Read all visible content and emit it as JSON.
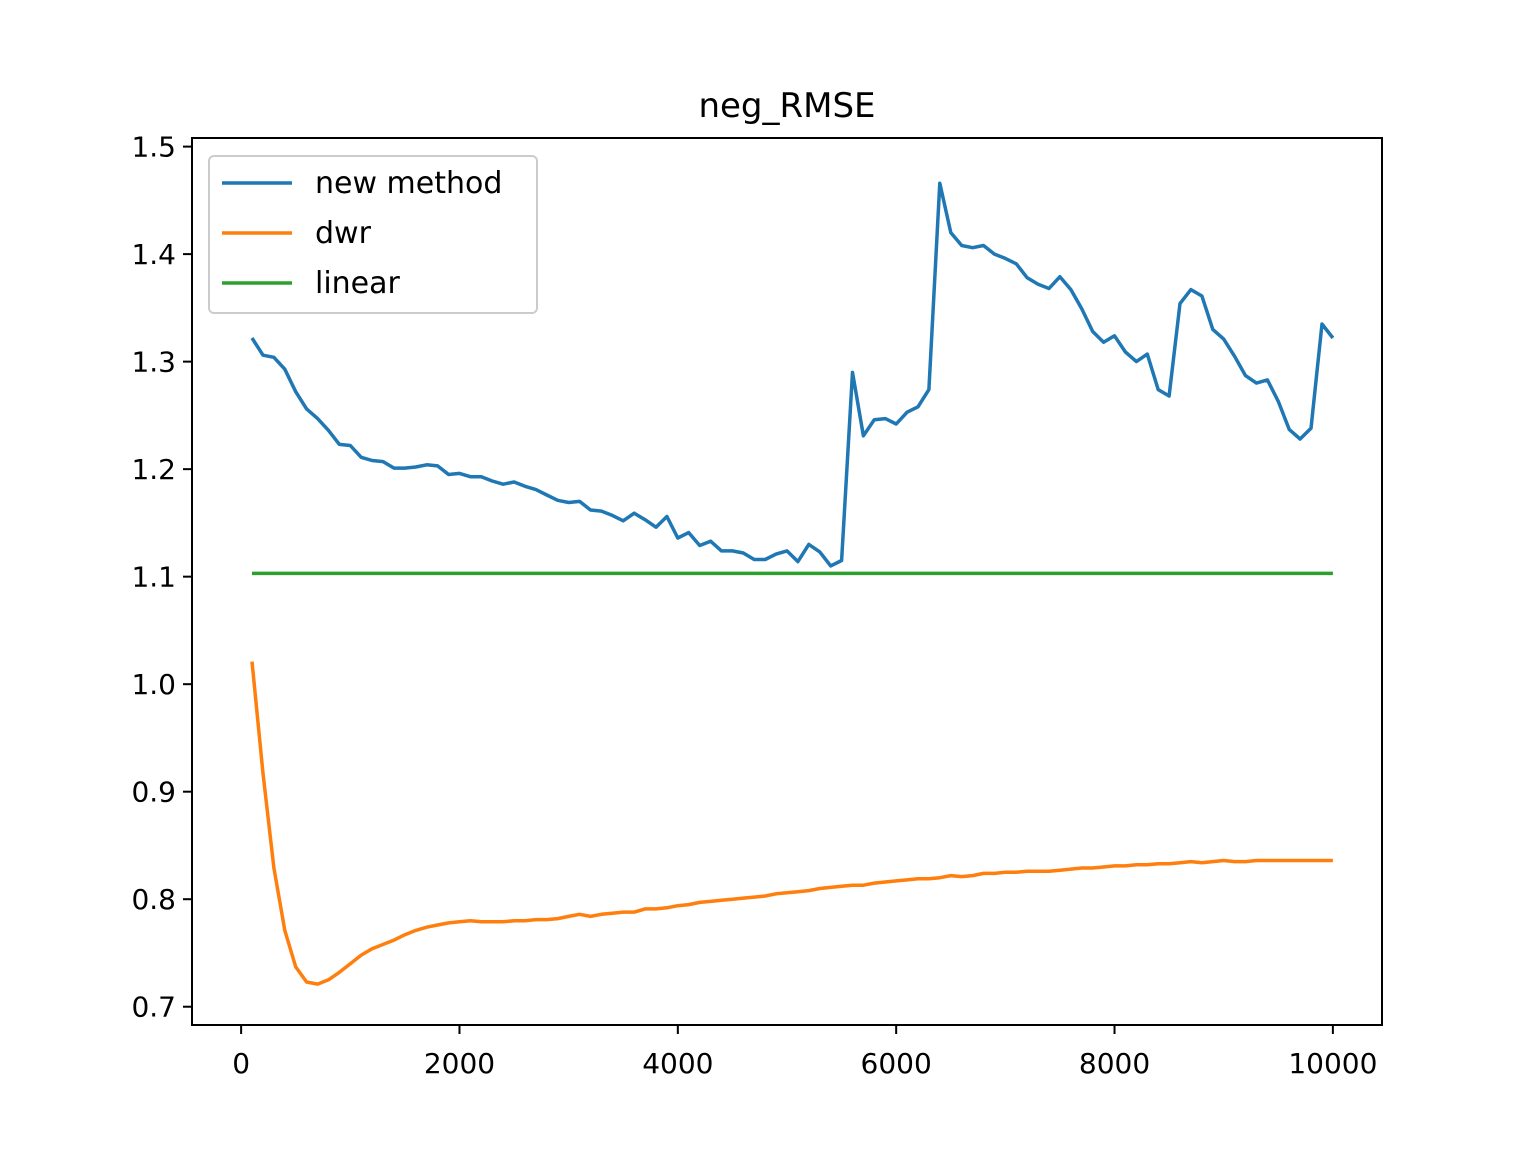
{
  "chart_data": {
    "type": "line",
    "title": "neg_RMSE",
    "xlabel": "",
    "ylabel": "",
    "xlim": [
      -450,
      10450
    ],
    "ylim": [
      0.683,
      1.508
    ],
    "x_ticks": [
      0,
      2000,
      4000,
      6000,
      8000,
      10000
    ],
    "x_tick_labels": [
      "0",
      "2000",
      "4000",
      "6000",
      "8000",
      "10000"
    ],
    "y_ticks": [
      0.7,
      0.8,
      0.9,
      1.0,
      1.1,
      1.2,
      1.3,
      1.4,
      1.5
    ],
    "y_tick_labels": [
      "0.7",
      "0.8",
      "0.9",
      "1.0",
      "1.1",
      "1.2",
      "1.3",
      "1.4",
      "1.5"
    ],
    "grid": false,
    "legend_position": "top-left",
    "x": [
      100,
      200,
      300,
      400,
      500,
      600,
      700,
      800,
      900,
      1000,
      1100,
      1200,
      1300,
      1400,
      1500,
      1600,
      1700,
      1800,
      1900,
      2000,
      2100,
      2200,
      2300,
      2400,
      2500,
      2600,
      2700,
      2800,
      2900,
      3000,
      3100,
      3200,
      3300,
      3400,
      3500,
      3600,
      3700,
      3800,
      3900,
      4000,
      4100,
      4200,
      4300,
      4400,
      4500,
      4600,
      4700,
      4800,
      4900,
      5000,
      5100,
      5200,
      5300,
      5400,
      5500,
      5600,
      5700,
      5800,
      5900,
      6000,
      6100,
      6200,
      6300,
      6400,
      6500,
      6600,
      6700,
      6800,
      6900,
      7000,
      7100,
      7200,
      7300,
      7400,
      7500,
      7600,
      7700,
      7800,
      7900,
      8000,
      8100,
      8200,
      8300,
      8400,
      8500,
      8600,
      8700,
      8800,
      8900,
      9000,
      9100,
      9200,
      9300,
      9400,
      9500,
      9600,
      9700,
      9800,
      9900,
      10000
    ],
    "series": [
      {
        "name": "new method",
        "color": "#1f77b4",
        "values": [
          1.322,
          1.306,
          1.304,
          1.293,
          1.272,
          1.256,
          1.247,
          1.236,
          1.223,
          1.222,
          1.211,
          1.208,
          1.207,
          1.201,
          1.201,
          1.202,
          1.204,
          1.203,
          1.195,
          1.196,
          1.193,
          1.193,
          1.189,
          1.186,
          1.188,
          1.184,
          1.181,
          1.176,
          1.171,
          1.169,
          1.17,
          1.162,
          1.161,
          1.157,
          1.152,
          1.159,
          1.153,
          1.146,
          1.156,
          1.136,
          1.141,
          1.129,
          1.133,
          1.124,
          1.124,
          1.122,
          1.116,
          1.116,
          1.121,
          1.124,
          1.114,
          1.13,
          1.123,
          1.11,
          1.115,
          1.29,
          1.231,
          1.246,
          1.247,
          1.242,
          1.253,
          1.258,
          1.274,
          1.466,
          1.42,
          1.408,
          1.406,
          1.408,
          1.4,
          1.396,
          1.391,
          1.378,
          1.372,
          1.368,
          1.379,
          1.367,
          1.349,
          1.328,
          1.318,
          1.324,
          1.309,
          1.3,
          1.307,
          1.274,
          1.268,
          1.354,
          1.367,
          1.361,
          1.33,
          1.321,
          1.305,
          1.287,
          1.28,
          1.283,
          1.263,
          1.237,
          1.228,
          1.238,
          1.335,
          1.322
        ]
      },
      {
        "name": "dwr",
        "color": "#ff7f0e",
        "values": [
          1.021,
          0.917,
          0.829,
          0.771,
          0.737,
          0.723,
          0.721,
          0.725,
          0.732,
          0.74,
          0.748,
          0.754,
          0.758,
          0.762,
          0.767,
          0.771,
          0.774,
          0.776,
          0.778,
          0.779,
          0.78,
          0.779,
          0.779,
          0.779,
          0.78,
          0.78,
          0.781,
          0.781,
          0.782,
          0.784,
          0.786,
          0.784,
          0.786,
          0.787,
          0.788,
          0.788,
          0.791,
          0.791,
          0.792,
          0.794,
          0.795,
          0.797,
          0.798,
          0.799,
          0.8,
          0.801,
          0.802,
          0.803,
          0.805,
          0.806,
          0.807,
          0.808,
          0.81,
          0.811,
          0.812,
          0.813,
          0.813,
          0.815,
          0.816,
          0.817,
          0.818,
          0.819,
          0.819,
          0.82,
          0.822,
          0.821,
          0.822,
          0.824,
          0.824,
          0.825,
          0.825,
          0.826,
          0.826,
          0.826,
          0.827,
          0.828,
          0.829,
          0.829,
          0.83,
          0.831,
          0.831,
          0.832,
          0.832,
          0.833,
          0.833,
          0.834,
          0.835,
          0.834,
          0.835,
          0.836,
          0.835,
          0.835,
          0.836,
          0.836,
          0.836,
          0.836,
          0.836,
          0.836,
          0.836,
          0.836
        ]
      },
      {
        "name": "linear",
        "color": "#2ca02c",
        "values": [
          1.103,
          1.103,
          1.103,
          1.103,
          1.103,
          1.103,
          1.103,
          1.103,
          1.103,
          1.103,
          1.103,
          1.103,
          1.103,
          1.103,
          1.103,
          1.103,
          1.103,
          1.103,
          1.103,
          1.103,
          1.103,
          1.103,
          1.103,
          1.103,
          1.103,
          1.103,
          1.103,
          1.103,
          1.103,
          1.103,
          1.103,
          1.103,
          1.103,
          1.103,
          1.103,
          1.103,
          1.103,
          1.103,
          1.103,
          1.103,
          1.103,
          1.103,
          1.103,
          1.103,
          1.103,
          1.103,
          1.103,
          1.103,
          1.103,
          1.103,
          1.103,
          1.103,
          1.103,
          1.103,
          1.103,
          1.103,
          1.103,
          1.103,
          1.103,
          1.103,
          1.103,
          1.103,
          1.103,
          1.103,
          1.103,
          1.103,
          1.103,
          1.103,
          1.103,
          1.103,
          1.103,
          1.103,
          1.103,
          1.103,
          1.103,
          1.103,
          1.103,
          1.103,
          1.103,
          1.103,
          1.103,
          1.103,
          1.103,
          1.103,
          1.103,
          1.103,
          1.103,
          1.103,
          1.103,
          1.103,
          1.103,
          1.103,
          1.103,
          1.103,
          1.103,
          1.103,
          1.103,
          1.103,
          1.103,
          1.103
        ]
      }
    ]
  }
}
